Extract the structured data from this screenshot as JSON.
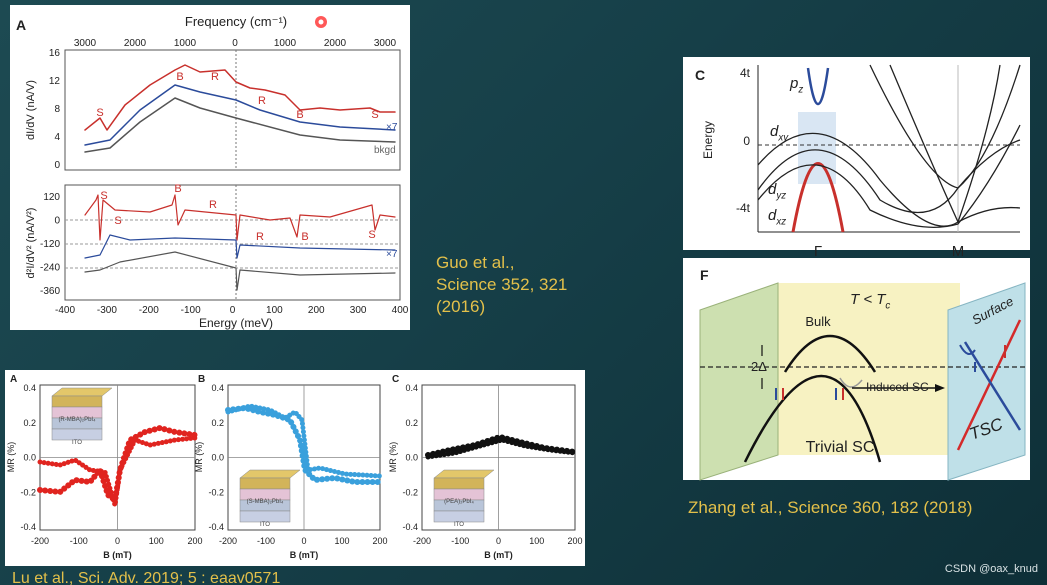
{
  "figure_a": {
    "panel": "A",
    "top_axis_title": "Frequency (cm⁻¹)",
    "top_ticks": [
      3000,
      2000,
      1000,
      0,
      1000,
      2000,
      3000
    ],
    "upper": {
      "ylabel": "dI/dV (nA/V)",
      "yticks": [
        16,
        12,
        8,
        4,
        0
      ],
      "annotations": [
        "S",
        "B",
        "R",
        "R",
        "B",
        "S"
      ],
      "scale_note": "×7",
      "bkgd": "bkgd"
    },
    "lower": {
      "ylabel": "d²I/dV² (nA/V²)",
      "yticks": [
        120,
        0,
        -120,
        -240,
        -360
      ],
      "annotations": [
        "S",
        "S",
        "B",
        "R",
        "R",
        "B",
        "S"
      ],
      "scale_note": "×7"
    },
    "xticks": [
      -400,
      -300,
      -200,
      -100,
      0,
      100,
      200,
      300,
      400
    ],
    "xlabel": "Energy (meV)"
  },
  "citation_a": [
    "Guo et al.,",
    "Science 352, 321",
    "(2016)"
  ],
  "figure_c": {
    "panel": "C",
    "yticks": [
      "4t",
      "0",
      "-4t"
    ],
    "ylabel": "Energy",
    "xticks": [
      "Γ",
      "M"
    ],
    "orbitals": [
      {
        "main": "p",
        "sub": "z"
      },
      {
        "main": "d",
        "sub": "xy"
      },
      {
        "main": "d",
        "sub": "yz"
      },
      {
        "main": "d",
        "sub": "xz"
      }
    ]
  },
  "figure_f": {
    "panel": "F",
    "condition": {
      "main": "T < T",
      "sub": "c"
    },
    "bulk": "Bulk",
    "gap": "2Δ",
    "induced": "Induced SC",
    "trivial": "Trivial SC",
    "surface": "Surface",
    "tsc": "TSC"
  },
  "citation_f": "Zhang et al., Science 360, 182 (2018)",
  "figure_mr": {
    "ylabel": "MR (%)",
    "xlabel": "B (mT)",
    "yticks": [
      "0.4",
      "0.2",
      "0.0",
      "-0.2",
      "-0.4"
    ],
    "xticks": [
      -200,
      -100,
      0,
      100,
      200
    ],
    "panels": [
      {
        "letter": "A",
        "material": "(R-MBA)₂PbI₄"
      },
      {
        "letter": "B",
        "material": "(S-MBA)₂PbI₄"
      },
      {
        "letter": "C",
        "material": "(PEA)₂PbI₄"
      }
    ],
    "electrode": "ITO"
  },
  "citation_mr": "Lu et al., Sci. Adv. 2019; 5 : eaav0571",
  "watermark": "CSDN @oax_knud"
}
